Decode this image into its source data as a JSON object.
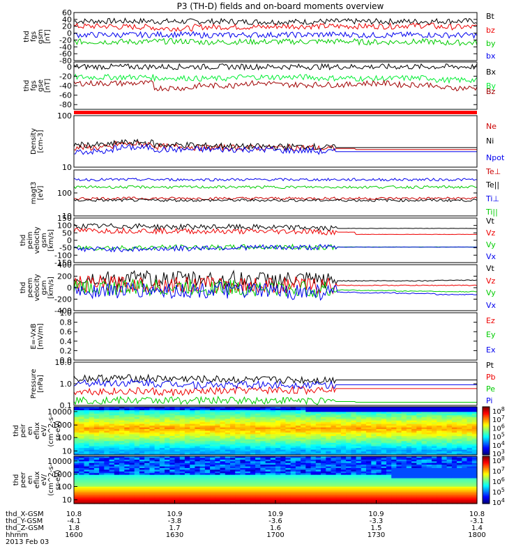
{
  "title": "P3 (TH-D) fields and on-board moments overview",
  "chart_data": {
    "type": "line",
    "title": "P3 (TH-D) fields and on-board moments overview",
    "x_range": [
      "16:00",
      "18:00"
    ],
    "x_ticks": [
      "1600",
      "1630",
      "1700",
      "1730",
      "1800"
    ],
    "panels": [
      {
        "ylabel": [
          "thd",
          "fgs",
          "gsm",
          "[nT]"
        ],
        "ylim": [
          -80,
          60
        ],
        "ticks": [
          60,
          40,
          20,
          0,
          -20,
          -40,
          -60,
          -80
        ],
        "tick_labels": [
          "60",
          "40",
          "20",
          "0",
          "-20",
          "-40",
          "-60",
          "-80"
        ],
        "series": [
          {
            "name": "Bt",
            "color": "#000000",
            "level": [
              35,
              35,
              34,
              34,
              33,
              33,
              34,
              34,
              34,
              35
            ]
          },
          {
            "name": "bz",
            "color": "#ee0000",
            "level": [
              20,
              18,
              14,
              18,
              18,
              20,
              20,
              20,
              22,
              18
            ]
          },
          {
            "name": "by",
            "color": "#00cc00",
            "level": [
              -25,
              -25,
              -24,
              -26,
              -25,
              -25,
              -24,
              -26,
              -25,
              -28
            ]
          },
          {
            "name": "bx",
            "color": "#0000ee",
            "level": [
              -5,
              -5,
              -4,
              -6,
              -5,
              -5,
              -4,
              -6,
              -5,
              -6
            ]
          }
        ],
        "legend": [
          "Bt",
          "bz",
          "by",
          "bx"
        ]
      },
      {
        "ylabel": [
          "thd",
          "fgs",
          "gse",
          "[nT]"
        ],
        "ylim": [
          -90,
          10
        ],
        "ticks": [
          0,
          -20,
          -40,
          -60,
          -80
        ],
        "tick_labels": [
          "0",
          "-20",
          "-40",
          "-60",
          "-80"
        ],
        "series": [
          {
            "name": "Bx",
            "color": "#000000",
            "level": [
              0,
              0,
              0,
              0,
              0,
              0,
              0,
              0,
              0,
              0
            ]
          },
          {
            "name": "By",
            "color": "#00ee33",
            "level": [
              -22,
              -22,
              -24,
              -25,
              -22,
              -22,
              -24,
              -25,
              -24,
              -28
            ]
          },
          {
            "name": "Bz",
            "color": "#a00000",
            "level": [
              -35,
              -35,
              -45,
              -40,
              -35,
              -38,
              -38,
              -35,
              -38,
              -45
            ]
          }
        ],
        "legend": [
          "Bx",
          "By",
          "Bz"
        ]
      },
      {
        "ylabel": [
          "Density",
          "[cm-3]"
        ],
        "ylim": [
          10,
          100
        ],
        "log": true,
        "ticks": [
          100,
          10
        ],
        "tick_labels": [
          "100",
          "10"
        ],
        "series": [
          {
            "name": "Ne",
            "color": "#cc0000",
            "level": [
              24,
              28,
              25,
              24,
              24,
              24,
              23,
              22,
              22,
              22
            ]
          },
          {
            "name": "Ni",
            "color": "#000000",
            "level": [
              27,
              30,
              27,
              26,
              25,
              25,
              24,
              24,
              24,
              24
            ]
          },
          {
            "name": "Npot",
            "color": "#0000ee",
            "level": [
              20,
              24,
              22,
              22,
              22,
              21,
              20,
              20,
              20,
              20
            ]
          }
        ],
        "legend": [
          "Ne",
          "Ni",
          "Npot"
        ]
      },
      {
        "ylabel": [
          "magt3",
          "[eV]"
        ],
        "ylim": [
          10,
          1000
        ],
        "log": true,
        "ticks": [
          100,
          10
        ],
        "tick_labels": [
          "100",
          "10"
        ],
        "series": [
          {
            "name": "Te⊥",
            "color": "#cc0000",
            "level": [
              58,
              58,
              58,
              58,
              58,
              58,
              58,
              58,
              58,
              58
            ]
          },
          {
            "name": "Te||",
            "color": "#000000",
            "level": [
              48,
              48,
              48,
              48,
              48,
              48,
              48,
              48,
              48,
              48
            ]
          },
          {
            "name": "Ti⊥",
            "color": "#0000ee",
            "level": [
              380,
              380,
              380,
              380,
              380,
              380,
              380,
              380,
              380,
              380
            ]
          },
          {
            "name": "Ti||",
            "color": "#00cc00",
            "level": [
              180,
              180,
              180,
              180,
              180,
              180,
              180,
              180,
              180,
              180
            ]
          }
        ],
        "legend": [
          "Te⊥",
          "Te||",
          "Ti⊥",
          "Ti||"
        ]
      },
      {
        "ylabel": [
          "thd",
          "peim",
          "velocity",
          "gsm",
          "[km/s]"
        ],
        "ylim": [
          -150,
          150
        ],
        "ticks": [
          150,
          100,
          50,
          0,
          -50,
          -100,
          -150
        ],
        "tick_labels": [
          "150",
          "100",
          "50",
          "0",
          "-50",
          "-100",
          "-150"
        ],
        "series": [
          {
            "name": "Vt",
            "color": "#000000",
            "level": [
              95,
              95,
              90,
              90,
              88,
              85,
              80,
              80,
              80,
              80
            ]
          },
          {
            "name": "Vz",
            "color": "#ee0000",
            "level": [
              65,
              65,
              62,
              60,
              60,
              60,
              55,
              40,
              40,
              40
            ]
          },
          {
            "name": "Vy",
            "color": "#00cc00",
            "level": [
              -50,
              -50,
              -48,
              -48,
              -46,
              -46,
              -45,
              -45,
              -45,
              -45
            ]
          },
          {
            "name": "Vx",
            "color": "#0000ee",
            "level": [
              -60,
              -60,
              -55,
              -50,
              -48,
              -48,
              -46,
              -46,
              -46,
              -46
            ]
          }
        ],
        "legend": [
          "Vt",
          "Vz",
          "Vy",
          "Vx"
        ]
      },
      {
        "ylabel": [
          "thd",
          "peem",
          "velocity",
          "gsm",
          "[km/s]"
        ],
        "ylim": [
          -400,
          400
        ],
        "ticks": [
          400,
          200,
          0,
          -200,
          -400
        ],
        "tick_labels": [
          "400",
          "200",
          "0",
          "-200",
          "-400"
        ],
        "series": [
          {
            "name": "Vt",
            "color": "#000000",
            "level": [
              150,
              150,
              150,
              150,
              140,
              130,
              120,
              120,
              120,
              130
            ]
          },
          {
            "name": "Vz",
            "color": "#ee0000",
            "level": [
              60,
              60,
              50,
              50,
              40,
              40,
              40,
              40,
              40,
              40
            ]
          },
          {
            "name": "Vy",
            "color": "#00cc00",
            "level": [
              0,
              0,
              0,
              0,
              -20,
              -30,
              -40,
              -50,
              -60,
              -70
            ]
          },
          {
            "name": "Vx",
            "color": "#0000ee",
            "level": [
              -50,
              -50,
              -50,
              -50,
              -60,
              -70,
              -80,
              -90,
              -100,
              -120
            ]
          }
        ],
        "legend": [
          "Vt",
          "Vz",
          "Vy",
          "Vx"
        ]
      },
      {
        "ylabel": [
          "E=-VxB",
          "[mV/m]"
        ],
        "ylim": [
          0,
          1.0
        ],
        "ticks": [
          1.0,
          0.8,
          0.6,
          0.4,
          0.2,
          0.0
        ],
        "tick_labels": [
          "1.0",
          "0.8",
          "0.6",
          "0.4",
          "0.2",
          "0.0"
        ],
        "series": [],
        "legend": [
          "Ez",
          "Ey",
          "Ex"
        ],
        "legend_colors": [
          "#ee0000",
          "#00cc00",
          "#0000ee"
        ]
      },
      {
        "ylabel": [
          "Pressure",
          "[nPa]"
        ],
        "ylim": [
          0.1,
          10
        ],
        "log": true,
        "ticks": [
          10.0,
          1.0,
          0.1
        ],
        "tick_labels": [
          "10.0",
          "1.0",
          "0.1"
        ],
        "series": [
          {
            "name": "Pt",
            "color": "#000000",
            "level": [
              1.8,
              1.8,
              1.7,
              1.6,
              1.5,
              1.5,
              1.5,
              1.5,
              1.5,
              1.5
            ]
          },
          {
            "name": "Pb",
            "color": "#ee0000",
            "level": [
              0.45,
              0.45,
              0.4,
              0.45,
              0.5,
              0.5,
              0.6,
              0.6,
              0.6,
              0.6
            ]
          },
          {
            "name": "Pe",
            "color": "#00cc00",
            "level": [
              0.17,
              0.17,
              0.17,
              0.17,
              0.17,
              0.17,
              0.15,
              0.14,
              0.14,
              0.14
            ]
          },
          {
            "name": "Pi",
            "color": "#0000ee",
            "level": [
              1.1,
              1.1,
              1.0,
              0.9,
              0.9,
              0.9,
              0.9,
              0.9,
              0.9,
              0.9
            ]
          }
        ],
        "legend": [
          "Pt",
          "Pb",
          "Pe",
          "Pi"
        ]
      }
    ],
    "spectrograms": [
      {
        "ylabel": [
          "thd",
          "peir",
          "en",
          "eflux",
          "eV/",
          "(cm^2-s-",
          "sr-eV)"
        ],
        "ylim": [
          10,
          10000
        ],
        "log": true,
        "tick_labels": [
          "10000",
          "1000",
          "100",
          "10"
        ],
        "colorbar": {
          "range": [
            3,
            8
          ],
          "labels": [
            "10^8",
            "10^7",
            "10^6",
            "10^5",
            "10^4",
            "10^3"
          ]
        }
      },
      {
        "ylabel": [
          "thd",
          "peer",
          "en",
          "eflux",
          "eV/",
          "(cm^2-s-",
          "sr-eV)"
        ],
        "ylim": [
          10,
          10000
        ],
        "log": true,
        "tick_labels": [
          "10000",
          "1000",
          "100",
          "10"
        ],
        "colorbar": {
          "range": [
            4,
            8
          ],
          "labels": [
            "10^8",
            "10^7",
            "10^6",
            "10^5",
            "10^4"
          ]
        }
      }
    ],
    "ephemeris": {
      "labels": [
        "thd_X-GSM",
        "thd_Y-GSM",
        "thd_Z-GSM",
        "hhmm",
        "2013 Feb 03"
      ],
      "rows": [
        [
          "10.8",
          "10.9",
          "10.9",
          "10.9",
          "10.8"
        ],
        [
          "-4.1",
          "-3.8",
          "-3.6",
          "-3.3",
          "-3.1"
        ],
        [
          "1.8",
          "1.7",
          "1.6",
          "1.5",
          "1.4"
        ],
        [
          "1600",
          "1630",
          "1700",
          "1730",
          "1800"
        ]
      ]
    }
  }
}
